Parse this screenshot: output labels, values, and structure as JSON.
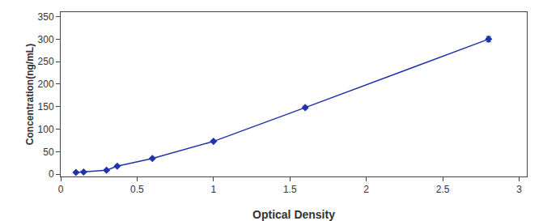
{
  "chart_data": {
    "type": "line",
    "x": [
      0.1,
      0.15,
      0.3,
      0.37,
      0.6,
      1.0,
      1.6,
      2.8
    ],
    "values": [
      4,
      5,
      9,
      18,
      35,
      73,
      148,
      300
    ],
    "yerr": [
      1.5,
      1.5,
      1.5,
      1.5,
      1.5,
      1.5,
      2.96,
      6
    ],
    "color": "#2233aa",
    "marker": "diamond",
    "line_style": "solid",
    "xlabel": "Optical Density",
    "ylabel": "Concentration(ng/mL)",
    "xlim": [
      0,
      3.05
    ],
    "ylim": [
      -5,
      360
    ],
    "xticks": [
      0,
      0.5,
      1,
      1.5,
      2,
      2.5,
      3
    ],
    "yticks": [
      0,
      50,
      100,
      150,
      200,
      250,
      300,
      350
    ],
    "grid": false
  }
}
